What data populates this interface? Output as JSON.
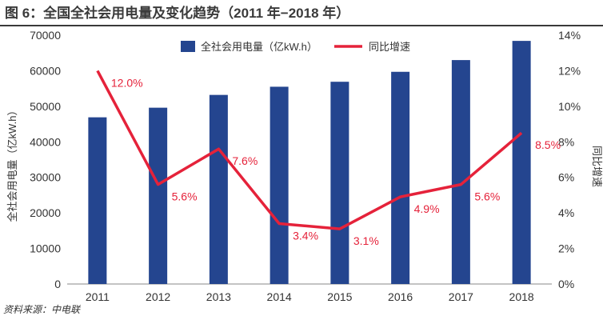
{
  "header": {
    "title": "图 6：全国全社会用电量及变化趋势（2011 年−2018 年）"
  },
  "footer": {
    "source": "资料来源：中电联"
  },
  "chart_data": {
    "type": "bar",
    "categories": [
      "2011",
      "2012",
      "2013",
      "2014",
      "2015",
      "2016",
      "2017",
      "2018"
    ],
    "series": [
      {
        "name": "全社会用电量（亿kW.h）",
        "type": "bar",
        "axis": "left",
        "color": "#24458f",
        "values": [
          46900,
          49600,
          53200,
          55500,
          56900,
          59700,
          63000,
          68400
        ]
      },
      {
        "name": "同比增速",
        "type": "line",
        "axis": "right",
        "color": "#e5223a",
        "values": [
          12.0,
          5.6,
          7.6,
          3.4,
          3.1,
          4.9,
          5.6,
          8.5
        ],
        "labels": [
          "12.0%",
          "5.6%",
          "7.6%",
          "3.4%",
          "3.1%",
          "4.9%",
          "5.6%",
          "8.5%"
        ]
      }
    ],
    "ylabel": "全社会用电量（亿kW.h）",
    "y2label": "同比增速",
    "ylim": [
      0,
      70000
    ],
    "y2lim": [
      0,
      14
    ],
    "yticks": [
      "0",
      "10000",
      "20000",
      "30000",
      "40000",
      "50000",
      "60000",
      "70000"
    ],
    "y2ticks": [
      "0%",
      "2%",
      "4%",
      "6%",
      "8%",
      "10%",
      "12%",
      "14%"
    ],
    "grid": false,
    "legend_position": "top"
  }
}
